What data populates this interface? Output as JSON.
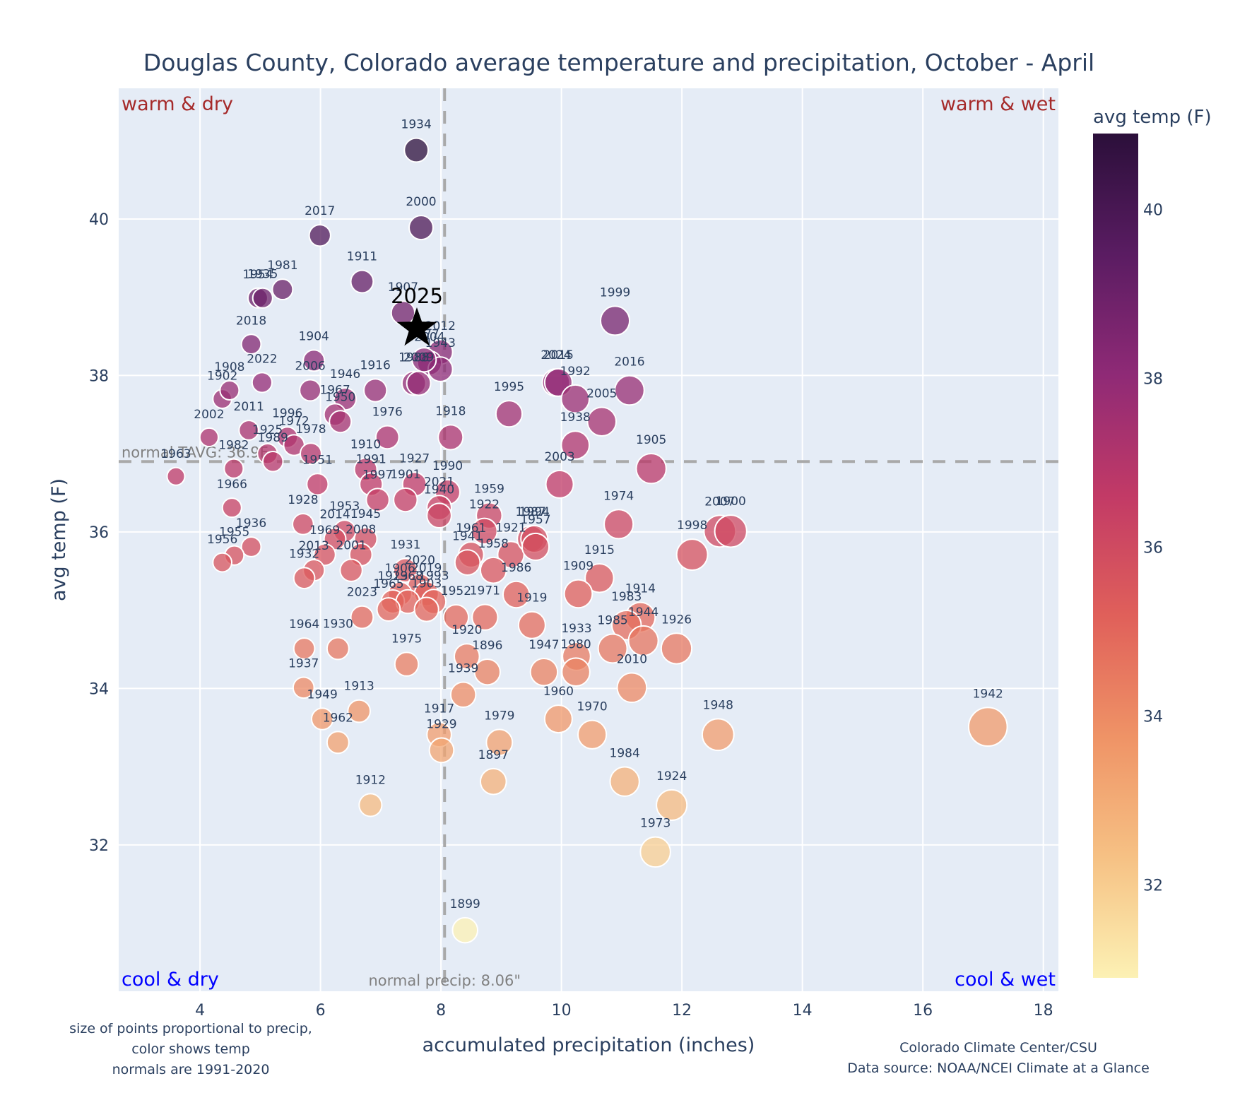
{
  "chart_data": {
    "type": "scatter",
    "title": "Douglas County, Colorado average temperature and precipitation, October - April",
    "xlabel": "accumulated precipitation (inches)",
    "ylabel": "avg temp (F)",
    "xlim": [
      2.65,
      18.25
    ],
    "ylim": [
      30.13,
      41.67
    ],
    "x_ticks": [
      4,
      6,
      8,
      10,
      12,
      14,
      16,
      18
    ],
    "y_ticks": [
      32,
      34,
      36,
      38,
      40
    ],
    "grid": true,
    "colorbar": {
      "title": "avg temp (F)",
      "range": [
        30.9,
        40.9
      ],
      "ticks": [
        32,
        34,
        36,
        38,
        40
      ],
      "colors": [
        "#fcf1b4",
        "#f6c184",
        "#ef9366",
        "#e0605a",
        "#c23a66",
        "#8f2a76",
        "#5a1c62",
        "#2b0f3a"
      ]
    },
    "normals": {
      "precip": 8.06,
      "temp": 36.9,
      "precip_label": "normal precip: 8.06\"",
      "temp_label": "normal TAVG: 36.9F"
    },
    "quadrant_labels": {
      "top_left": "warm & dry",
      "top_right": "warm & wet",
      "bottom_left": "cool & dry",
      "bottom_right": "cool & wet"
    },
    "current": {
      "year": "2025",
      "precip": 7.6,
      "temp": 38.6
    },
    "points": [
      {
        "year": "1934",
        "precip": 7.59,
        "temp": 40.88
      },
      {
        "year": "2000",
        "precip": 7.67,
        "temp": 39.89
      },
      {
        "year": "2017",
        "precip": 5.99,
        "temp": 39.79
      },
      {
        "year": "1911",
        "precip": 6.69,
        "temp": 39.2
      },
      {
        "year": "1981",
        "precip": 5.37,
        "temp": 39.1
      },
      {
        "year": "1954",
        "precip": 4.96,
        "temp": 38.99
      },
      {
        "year": "1935",
        "precip": 5.04,
        "temp": 38.99
      },
      {
        "year": "1907",
        "precip": 7.37,
        "temp": 38.8
      },
      {
        "year": "2018",
        "precip": 4.85,
        "temp": 38.4
      },
      {
        "year": "1904",
        "precip": 5.89,
        "temp": 38.19
      },
      {
        "year": "2012",
        "precip": 7.99,
        "temp": 38.3
      },
      {
        "year": "2004",
        "precip": 7.81,
        "temp": 38.16
      },
      {
        "year": "1943",
        "precip": 7.99,
        "temp": 38.08
      },
      {
        "year": "1977",
        "precip": 7.72,
        "temp": 38.2
      },
      {
        "year": "1988",
        "precip": 7.55,
        "temp": 37.9
      },
      {
        "year": "2009",
        "precip": 7.63,
        "temp": 37.9
      },
      {
        "year": "2022",
        "precip": 5.03,
        "temp": 37.91
      },
      {
        "year": "1902",
        "precip": 4.37,
        "temp": 37.7
      },
      {
        "year": "1908",
        "precip": 4.49,
        "temp": 37.81
      },
      {
        "year": "2006",
        "precip": 5.83,
        "temp": 37.81
      },
      {
        "year": "1946",
        "precip": 6.41,
        "temp": 37.7
      },
      {
        "year": "1916",
        "precip": 6.91,
        "temp": 37.81
      },
      {
        "year": "1967",
        "precip": 6.24,
        "temp": 37.5
      },
      {
        "year": "1950",
        "precip": 6.33,
        "temp": 37.41
      },
      {
        "year": "2011",
        "precip": 4.81,
        "temp": 37.3
      },
      {
        "year": "2002",
        "precip": 4.15,
        "temp": 37.21
      },
      {
        "year": "1996",
        "precip": 5.45,
        "temp": 37.21
      },
      {
        "year": "1972",
        "precip": 5.56,
        "temp": 37.11
      },
      {
        "year": "1925",
        "precip": 5.12,
        "temp": 37.0
      },
      {
        "year": "1989",
        "precip": 5.21,
        "temp": 36.9
      },
      {
        "year": "1978",
        "precip": 5.84,
        "temp": 37.0
      },
      {
        "year": "1982",
        "precip": 4.56,
        "temp": 36.81
      },
      {
        "year": "1963",
        "precip": 3.6,
        "temp": 36.71
      },
      {
        "year": "1976",
        "precip": 7.11,
        "temp": 37.21
      },
      {
        "year": "1918",
        "precip": 8.16,
        "temp": 37.21
      },
      {
        "year": "1910",
        "precip": 6.75,
        "temp": 36.8
      },
      {
        "year": "1991",
        "precip": 6.84,
        "temp": 36.61
      },
      {
        "year": "1997",
        "precip": 6.95,
        "temp": 36.41
      },
      {
        "year": "1927",
        "precip": 7.56,
        "temp": 36.61
      },
      {
        "year": "1901",
        "precip": 7.41,
        "temp": 36.41
      },
      {
        "year": "1990",
        "precip": 8.11,
        "temp": 36.51
      },
      {
        "year": "2021",
        "precip": 7.97,
        "temp": 36.31
      },
      {
        "year": "1940",
        "precip": 7.97,
        "temp": 36.21
      },
      {
        "year": "1951",
        "precip": 5.95,
        "temp": 36.61
      },
      {
        "year": "1966",
        "precip": 4.53,
        "temp": 36.31
      },
      {
        "year": "1928",
        "precip": 5.71,
        "temp": 36.1
      },
      {
        "year": "1953",
        "precip": 6.4,
        "temp": 36.01
      },
      {
        "year": "1945",
        "precip": 6.75,
        "temp": 35.91
      },
      {
        "year": "2014",
        "precip": 6.24,
        "temp": 35.91
      },
      {
        "year": "2008",
        "precip": 6.67,
        "temp": 35.71
      },
      {
        "year": "1969",
        "precip": 6.07,
        "temp": 35.71
      },
      {
        "year": "2001",
        "precip": 6.51,
        "temp": 35.51
      },
      {
        "year": "2013",
        "precip": 5.89,
        "temp": 35.51
      },
      {
        "year": "1932",
        "precip": 5.73,
        "temp": 35.41
      },
      {
        "year": "1936",
        "precip": 4.85,
        "temp": 35.81
      },
      {
        "year": "1955",
        "precip": 4.57,
        "temp": 35.7
      },
      {
        "year": "1956",
        "precip": 4.37,
        "temp": 35.61
      },
      {
        "year": "1959",
        "precip": 8.8,
        "temp": 36.21
      },
      {
        "year": "1922",
        "precip": 8.72,
        "temp": 36.01
      },
      {
        "year": "1921",
        "precip": 9.16,
        "temp": 35.71
      },
      {
        "year": "1987",
        "precip": 9.49,
        "temp": 35.91
      },
      {
        "year": "1994",
        "precip": 9.55,
        "temp": 35.91
      },
      {
        "year": "1957",
        "precip": 9.57,
        "temp": 35.81
      },
      {
        "year": "1961",
        "precip": 8.5,
        "temp": 35.71
      },
      {
        "year": "1941",
        "precip": 8.44,
        "temp": 35.61
      },
      {
        "year": "1958",
        "precip": 8.87,
        "temp": 35.51
      },
      {
        "year": "1986",
        "precip": 9.25,
        "temp": 35.2
      },
      {
        "year": "1971",
        "precip": 8.73,
        "temp": 34.91
      },
      {
        "year": "1952",
        "precip": 8.25,
        "temp": 34.91
      },
      {
        "year": "1919",
        "precip": 9.51,
        "temp": 34.81
      },
      {
        "year": "1931",
        "precip": 7.41,
        "temp": 35.51
      },
      {
        "year": "2020",
        "precip": 7.65,
        "temp": 35.31
      },
      {
        "year": "1906",
        "precip": 7.32,
        "temp": 35.21
      },
      {
        "year": "2019",
        "precip": 7.76,
        "temp": 35.21
      },
      {
        "year": "1923",
        "precip": 7.2,
        "temp": 35.11
      },
      {
        "year": "1968",
        "precip": 7.45,
        "temp": 35.11
      },
      {
        "year": "1993",
        "precip": 7.88,
        "temp": 35.11
      },
      {
        "year": "1903",
        "precip": 7.76,
        "temp": 35.01
      },
      {
        "year": "1965",
        "precip": 7.13,
        "temp": 35.01
      },
      {
        "year": "2023",
        "precip": 6.69,
        "temp": 34.91
      },
      {
        "year": "1975",
        "precip": 7.43,
        "temp": 34.31
      },
      {
        "year": "1964",
        "precip": 5.73,
        "temp": 34.51
      },
      {
        "year": "1930",
        "precip": 6.29,
        "temp": 34.51
      },
      {
        "year": "1937",
        "precip": 5.72,
        "temp": 34.01
      },
      {
        "year": "1913",
        "precip": 6.64,
        "temp": 33.71
      },
      {
        "year": "1949",
        "precip": 6.03,
        "temp": 33.61
      },
      {
        "year": "1962",
        "precip": 6.29,
        "temp": 33.31
      },
      {
        "year": "1912",
        "precip": 6.83,
        "temp": 32.51
      },
      {
        "year": "1920",
        "precip": 8.43,
        "temp": 34.41
      },
      {
        "year": "1896",
        "precip": 8.77,
        "temp": 34.21
      },
      {
        "year": "1939",
        "precip": 8.37,
        "temp": 33.92
      },
      {
        "year": "1917",
        "precip": 7.97,
        "temp": 33.41
      },
      {
        "year": "1929",
        "precip": 8.01,
        "temp": 33.21
      },
      {
        "year": "1979",
        "precip": 8.97,
        "temp": 33.31
      },
      {
        "year": "1897",
        "precip": 8.87,
        "temp": 32.81
      },
      {
        "year": "1899",
        "precip": 8.4,
        "temp": 30.91
      },
      {
        "year": "1995",
        "precip": 9.13,
        "temp": 37.51
      },
      {
        "year": "2024",
        "precip": 9.91,
        "temp": 37.91
      },
      {
        "year": "2015",
        "precip": 9.95,
        "temp": 37.91
      },
      {
        "year": "1992",
        "precip": 10.23,
        "temp": 37.7
      },
      {
        "year": "1938",
        "precip": 10.23,
        "temp": 37.11
      },
      {
        "year": "2005",
        "precip": 10.67,
        "temp": 37.41
      },
      {
        "year": "2016",
        "precip": 11.13,
        "temp": 37.81
      },
      {
        "year": "1999",
        "precip": 10.89,
        "temp": 38.7
      },
      {
        "year": "2003",
        "precip": 9.97,
        "temp": 36.61
      },
      {
        "year": "1905",
        "precip": 11.49,
        "temp": 36.81
      },
      {
        "year": "1974",
        "precip": 10.95,
        "temp": 36.1
      },
      {
        "year": "1998",
        "precip": 12.17,
        "temp": 35.71
      },
      {
        "year": "2007",
        "precip": 12.63,
        "temp": 36.01
      },
      {
        "year": "1900",
        "precip": 12.81,
        "temp": 36.01
      },
      {
        "year": "1915",
        "precip": 10.63,
        "temp": 35.41
      },
      {
        "year": "1909",
        "precip": 10.28,
        "temp": 35.21
      },
      {
        "year": "1914",
        "precip": 11.31,
        "temp": 34.91
      },
      {
        "year": "1983",
        "precip": 11.08,
        "temp": 34.81
      },
      {
        "year": "1985",
        "precip": 10.85,
        "temp": 34.51
      },
      {
        "year": "1944",
        "precip": 11.36,
        "temp": 34.61
      },
      {
        "year": "1926",
        "precip": 11.91,
        "temp": 34.51
      },
      {
        "year": "1947",
        "precip": 9.71,
        "temp": 34.21
      },
      {
        "year": "1933",
        "precip": 10.25,
        "temp": 34.41
      },
      {
        "year": "1980",
        "precip": 10.24,
        "temp": 34.21
      },
      {
        "year": "2010",
        "precip": 11.17,
        "temp": 34.01
      },
      {
        "year": "1960",
        "precip": 9.95,
        "temp": 33.61
      },
      {
        "year": "1970",
        "precip": 10.51,
        "temp": 33.41
      },
      {
        "year": "1984",
        "precip": 11.05,
        "temp": 32.81
      },
      {
        "year": "1924",
        "precip": 11.83,
        "temp": 32.51
      },
      {
        "year": "1973",
        "precip": 11.56,
        "temp": 31.91
      },
      {
        "year": "1948",
        "precip": 12.6,
        "temp": 33.41
      },
      {
        "year": "1942",
        "precip": 17.08,
        "temp": 33.51
      }
    ]
  },
  "notes": {
    "left": [
      "size of points proportional to precip,",
      "color shows temp",
      "normals are 1991-2020"
    ],
    "right": [
      "Colorado Climate Center/CSU",
      "Data source: NOAA/NCEI Climate at a Glance"
    ]
  }
}
